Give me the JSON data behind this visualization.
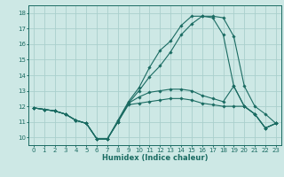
{
  "xlabel": "Humidex (Indice chaleur)",
  "background_color": "#cde8e5",
  "grid_color": "#aacfcc",
  "line_color": "#1a6b62",
  "xlim": [
    -0.5,
    23.5
  ],
  "ylim": [
    9.5,
    18.5
  ],
  "yticks": [
    10,
    11,
    12,
    13,
    14,
    15,
    16,
    17,
    18
  ],
  "xticks": [
    0,
    1,
    2,
    3,
    4,
    5,
    6,
    7,
    8,
    9,
    10,
    11,
    12,
    13,
    14,
    15,
    16,
    17,
    18,
    19,
    20,
    21,
    22,
    23
  ],
  "series": [
    {
      "x": [
        0,
        1,
        2,
        3,
        4,
        5,
        6,
        7,
        8,
        9,
        10,
        11,
        12,
        13,
        14,
        15,
        16,
        17,
        18,
        19,
        20,
        21,
        22,
        23
      ],
      "y": [
        11.9,
        11.8,
        11.7,
        11.5,
        11.1,
        10.9,
        9.9,
        9.9,
        11.1,
        12.3,
        13.2,
        14.5,
        15.6,
        16.2,
        17.2,
        17.8,
        17.8,
        17.7,
        16.6,
        13.3,
        12.0,
        11.5,
        10.6,
        10.9
      ]
    },
    {
      "x": [
        0,
        1,
        2,
        3,
        4,
        5,
        6,
        7,
        8,
        9,
        10,
        11,
        12,
        13,
        14,
        15,
        16,
        17,
        18,
        19,
        20,
        21,
        22,
        23
      ],
      "y": [
        11.9,
        11.8,
        11.7,
        11.5,
        11.1,
        10.9,
        9.9,
        9.9,
        11.0,
        12.2,
        13.0,
        13.9,
        14.6,
        15.5,
        16.6,
        17.3,
        17.8,
        17.8,
        17.7,
        16.5,
        13.3,
        12.0,
        11.5,
        10.9
      ]
    },
    {
      "x": [
        0,
        1,
        2,
        3,
        4,
        5,
        6,
        7,
        8,
        9,
        10,
        11,
        12,
        13,
        14,
        15,
        16,
        17,
        18,
        19,
        20,
        21,
        22,
        23
      ],
      "y": [
        11.9,
        11.8,
        11.7,
        11.5,
        11.1,
        10.9,
        9.9,
        9.9,
        11.0,
        12.2,
        12.6,
        12.9,
        13.0,
        13.1,
        13.1,
        13.0,
        12.7,
        12.5,
        12.3,
        13.3,
        12.0,
        11.5,
        10.6,
        10.9
      ]
    },
    {
      "x": [
        0,
        1,
        2,
        3,
        4,
        5,
        6,
        7,
        8,
        9,
        10,
        11,
        12,
        13,
        14,
        15,
        16,
        17,
        18,
        19,
        20,
        21,
        22,
        23
      ],
      "y": [
        11.9,
        11.8,
        11.7,
        11.5,
        11.1,
        10.9,
        9.9,
        9.9,
        11.0,
        12.1,
        12.2,
        12.3,
        12.4,
        12.5,
        12.5,
        12.4,
        12.2,
        12.1,
        12.0,
        12.0,
        12.0,
        11.5,
        10.6,
        10.9
      ]
    }
  ]
}
